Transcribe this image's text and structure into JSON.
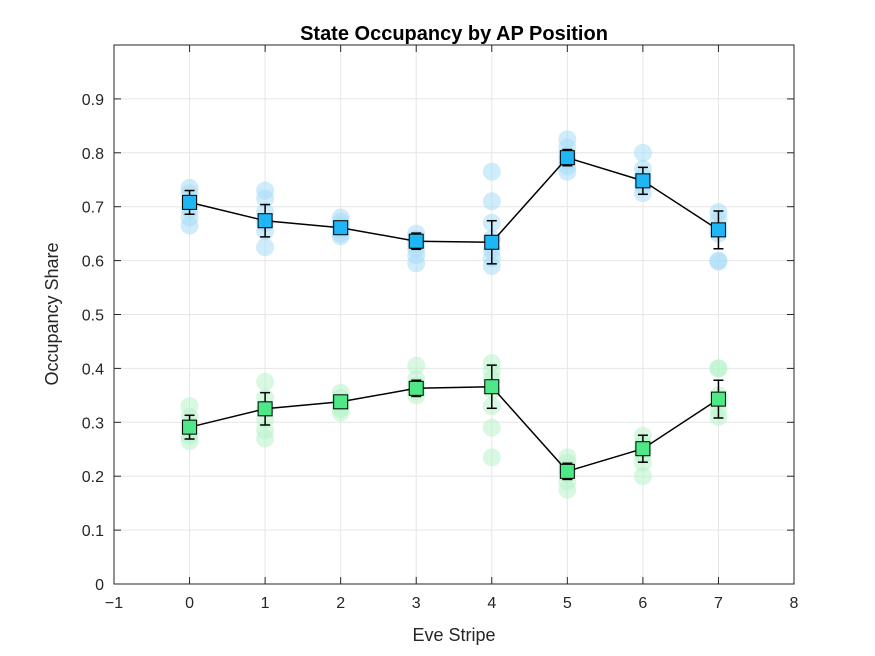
{
  "chart_data": {
    "type": "scatter",
    "title": "State Occupancy by AP Position",
    "xlabel": "Eve Stripe",
    "ylabel": "Occupancy Share",
    "xlim": [
      -1,
      8
    ],
    "ylim": [
      0,
      1
    ],
    "xticks": [
      -1,
      0,
      1,
      2,
      3,
      4,
      5,
      6,
      7,
      8
    ],
    "xtick_labels": [
      "−1",
      "0",
      "1",
      "2",
      "3",
      "4",
      "5",
      "6",
      "7",
      "8"
    ],
    "yticks": [
      0,
      0.1,
      0.2,
      0.3,
      0.4,
      0.5,
      0.6,
      0.7,
      0.8,
      0.9
    ],
    "ytick_labels": [
      "0",
      "0.1",
      "0.2",
      "0.3",
      "0.4",
      "0.5",
      "0.6",
      "0.7",
      "0.8",
      "0.9"
    ],
    "grid": true,
    "legend": "none",
    "x": [
      0,
      1,
      2,
      3,
      4,
      5,
      6,
      7
    ],
    "series": [
      {
        "color": "#1fb6f5",
        "light_color": "#a8dcf6",
        "means": [
          0.708,
          0.674,
          0.661,
          0.636,
          0.634,
          0.791,
          0.748,
          0.657
        ],
        "errors": [
          0.022,
          0.03,
          0.012,
          0.015,
          0.04,
          0.015,
          0.025,
          0.035
        ],
        "points": [
          [
            0.735,
            0.725,
            0.71,
            0.695,
            0.68,
            0.665
          ],
          [
            0.73,
            0.715,
            0.69,
            0.67,
            0.655,
            0.625
          ],
          [
            0.68,
            0.672,
            0.665,
            0.658,
            0.65,
            0.645
          ],
          [
            0.65,
            0.64,
            0.632,
            0.622,
            0.61,
            0.595
          ],
          [
            0.765,
            0.71,
            0.67,
            0.64,
            0.62,
            0.605,
            0.59
          ],
          [
            0.825,
            0.81,
            0.795,
            0.785,
            0.775,
            0.765
          ],
          [
            0.8,
            0.77,
            0.755,
            0.74,
            0.725
          ],
          [
            0.69,
            0.675,
            0.66,
            0.65,
            0.6,
            0.598
          ]
        ]
      },
      {
        "color": "#4ee888",
        "light_color": "#b8f2cb",
        "means": [
          0.291,
          0.325,
          0.338,
          0.363,
          0.366,
          0.209,
          0.251,
          0.343
        ],
        "errors": [
          0.022,
          0.03,
          0.012,
          0.015,
          0.04,
          0.015,
          0.025,
          0.035
        ],
        "points": [
          [
            0.33,
            0.31,
            0.295,
            0.285,
            0.275,
            0.265
          ],
          [
            0.375,
            0.345,
            0.325,
            0.305,
            0.285,
            0.27
          ],
          [
            0.355,
            0.345,
            0.338,
            0.33,
            0.325,
            0.318
          ],
          [
            0.405,
            0.38,
            0.368,
            0.358,
            0.35
          ],
          [
            0.41,
            0.395,
            0.38,
            0.36,
            0.33,
            0.29,
            0.235
          ],
          [
            0.235,
            0.225,
            0.215,
            0.205,
            0.19,
            0.175
          ],
          [
            0.275,
            0.26,
            0.25,
            0.24,
            0.225,
            0.2
          ],
          [
            0.4,
            0.4,
            0.35,
            0.34,
            0.325,
            0.31
          ]
        ]
      }
    ]
  }
}
